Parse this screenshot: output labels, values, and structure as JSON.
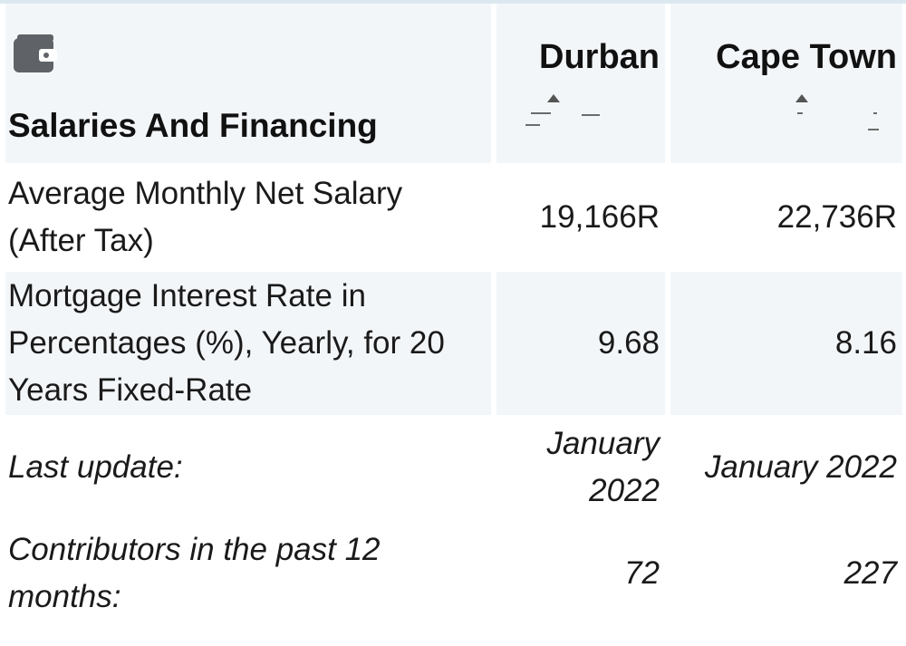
{
  "section": {
    "title": "Salaries And Financing",
    "icon": "wallet-icon"
  },
  "cities": [
    "Durban",
    "Cape Town"
  ],
  "rows": [
    {
      "label": "Average Monthly Net Salary (After Tax)",
      "values": [
        "19,166R",
        "22,736R"
      ]
    },
    {
      "label": "Mortgage Interest Rate in Percentages (%), Yearly, for 20 Years Fixed-Rate",
      "values": [
        "9.68",
        "8.16"
      ]
    }
  ],
  "footer": [
    {
      "label": "Last update:",
      "values": [
        "January 2022",
        "January 2022"
      ]
    },
    {
      "label": "Contributors in the past 12 months:",
      "values": [
        "72",
        "227"
      ]
    }
  ],
  "colors": {
    "row_shade": "#f3f6f9",
    "icon": "#5f6368"
  }
}
